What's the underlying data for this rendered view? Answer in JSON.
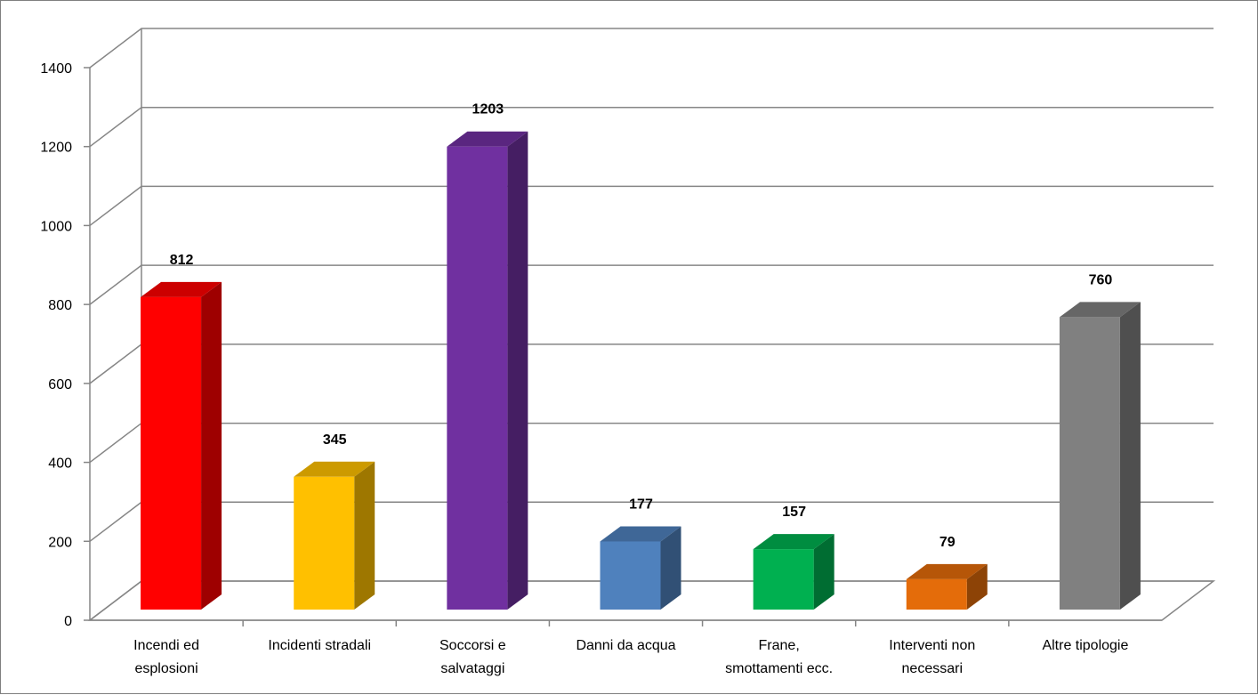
{
  "chart_data": {
    "type": "bar",
    "style": "3d-column",
    "categories": [
      [
        "Incendi ed",
        "esplosioni"
      ],
      [
        "Incidenti stradali"
      ],
      [
        "Soccorsi e",
        "salvataggi"
      ],
      [
        "Danni da acqua"
      ],
      [
        "Frane,",
        "smottamenti ecc."
      ],
      [
        "Interventi non",
        "necessari"
      ],
      [
        "Altre tipologie"
      ]
    ],
    "values": [
      812,
      345,
      1203,
      177,
      157,
      79,
      760
    ],
    "value_labels": [
      "812",
      "345",
      "1203",
      "177",
      "157",
      "79",
      "760"
    ],
    "colors": [
      "#ff0000",
      "#ffc000",
      "#7030a0",
      "#4f81bd",
      "#00b050",
      "#e46c0a",
      "#808080"
    ],
    "y_ticks": [
      "0",
      "200",
      "400",
      "600",
      "800",
      "1000",
      "1200",
      "1400"
    ],
    "ylim": [
      0,
      1400
    ],
    "grid": true,
    "legend": "none",
    "title": "",
    "xlabel": "",
    "ylabel": ""
  }
}
